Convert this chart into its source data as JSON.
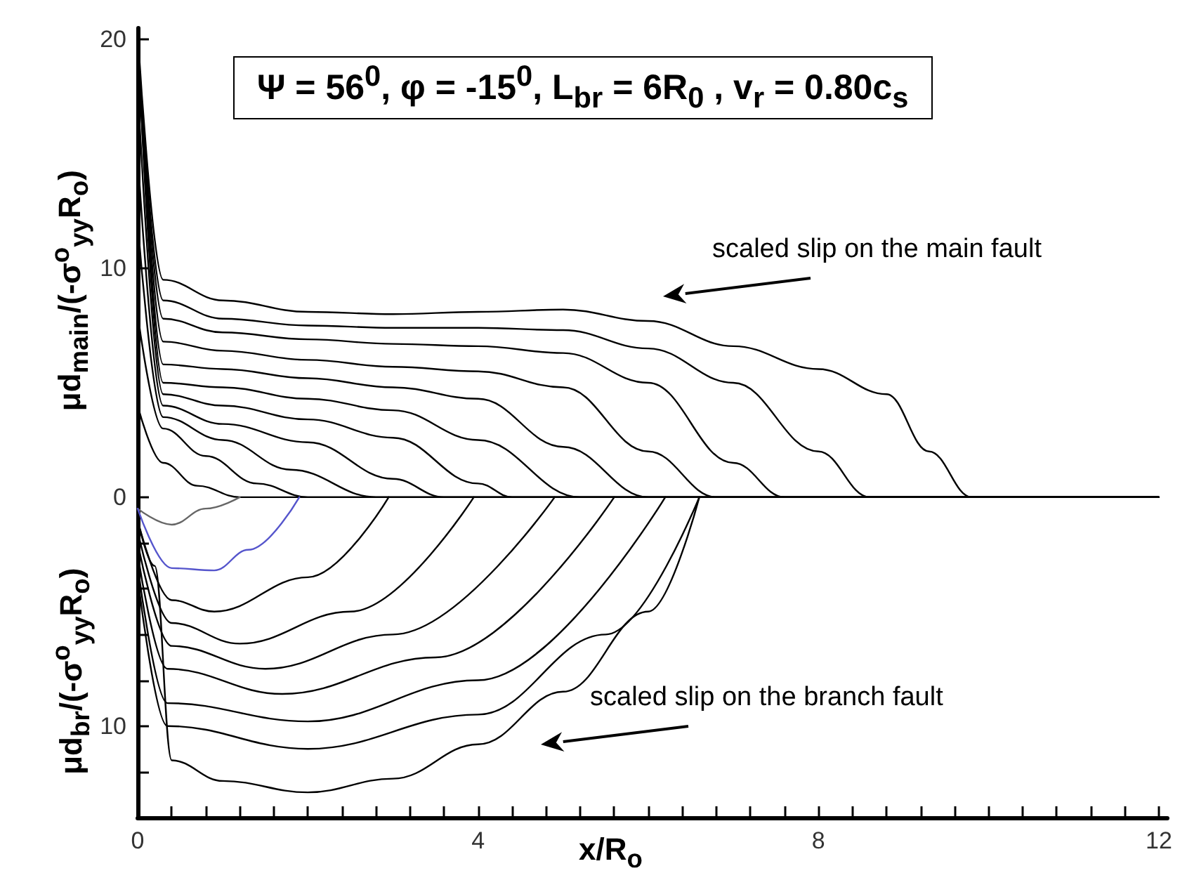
{
  "chart_data": {
    "type": "line",
    "title": "Ψ = 56$^{0}$, φ = -15$^{0}$, L$_{br}$ = 6R$_{0}$ , v$_{r}$ = 0.80c$_{s}$",
    "xlabel": "x/R$_{o}$",
    "ylabel": "μd$_{main}$/(-σ$^{o}$$_{yy}$R$_{o}$)",
    "annotations": [
      "μd$_{br}$/(-σ$^{o}$$_{yy}$R$_{o}$)",
      "scaled slip on the main fault",
      "scaled slip on the branch fault"
    ],
    "xlim": [
      0,
      12.1
    ],
    "ylim": [
      -14,
      20.5
    ],
    "xticks": [
      0,
      {
        "value": 0.4,
        "label": null
      },
      {
        "value": 0.8,
        "label": null
      },
      {
        "value": 1.2,
        "label": null
      },
      {
        "value": 1.6,
        "label": null
      },
      {
        "value": 2,
        "label": null
      },
      {
        "value": 2.4,
        "label": null
      },
      {
        "value": 2.8,
        "label": null
      },
      {
        "value": 3.2,
        "label": null
      },
      {
        "value": 3.6,
        "label": null
      },
      4,
      {
        "value": 4.4,
        "label": null
      },
      {
        "value": 4.8,
        "label": null
      },
      {
        "value": 5.2,
        "label": null
      },
      {
        "value": 5.6,
        "label": null
      },
      {
        "value": 6,
        "label": null
      },
      {
        "value": 6.4,
        "label": null
      },
      {
        "value": 6.8,
        "label": null
      },
      {
        "value": 7.2,
        "label": null
      },
      {
        "value": 7.6,
        "label": null
      },
      8,
      {
        "value": 8.4,
        "label": null
      },
      {
        "value": 8.8,
        "label": null
      },
      {
        "value": 9.2,
        "label": null
      },
      {
        "value": 9.6,
        "label": null
      },
      {
        "value": 10,
        "label": null
      },
      {
        "value": 10.4,
        "label": null
      },
      {
        "value": 10.8,
        "label": null
      },
      {
        "value": 11.2,
        "label": null
      },
      {
        "value": 11.6,
        "label": null
      },
      12
    ],
    "yticks": [
      {
        "value": -12,
        "label": null
      },
      {
        "value": -10,
        "label": "10"
      },
      {
        "value": -8,
        "label": null
      },
      {
        "value": -6,
        "label": null
      },
      {
        "value": -4,
        "label": null
      },
      {
        "value": -2,
        "label": null
      },
      0,
      10,
      20
    ],
    "grid": false,
    "marker": "none",
    "line_style": "solid",
    "series": [
      {
        "color": "#000000",
        "x": [
          0,
          0.3,
          0.7,
          1.2,
          12
        ],
        "values": [
          4,
          1.5,
          0.5,
          0,
          0
        ]
      },
      {
        "color": "#000000",
        "x": [
          0,
          0.3,
          0.8,
          1.4,
          2.0,
          12
        ],
        "values": [
          8,
          3,
          1.8,
          0.6,
          0,
          0
        ]
      },
      {
        "color": "#000000",
        "x": [
          0,
          0.3,
          1,
          1.8,
          2.8,
          12
        ],
        "values": [
          12,
          3.5,
          2.5,
          1.2,
          0,
          0
        ]
      },
      {
        "color": "#000000",
        "x": [
          0,
          0.3,
          1,
          2,
          3,
          3.6,
          12
        ],
        "values": [
          15,
          4,
          3.2,
          2.4,
          0.8,
          0,
          0
        ]
      },
      {
        "color": "#000000",
        "x": [
          0,
          0.3,
          1,
          2,
          3,
          4,
          4.4,
          12
        ],
        "values": [
          18,
          4.5,
          4,
          3.4,
          2.6,
          0.6,
          0,
          0
        ]
      },
      {
        "color": "#000000",
        "x": [
          0,
          0.3,
          1,
          2,
          3,
          4,
          5.2,
          12
        ],
        "values": [
          20,
          5,
          4.8,
          4.3,
          3.8,
          2.5,
          0,
          0
        ]
      },
      {
        "color": "#000000",
        "x": [
          0,
          0.3,
          1,
          2,
          3,
          4,
          5,
          6,
          12
        ],
        "values": [
          20,
          5.8,
          5.6,
          5.2,
          4.8,
          4.3,
          2.2,
          0,
          0
        ]
      },
      {
        "color": "#000000",
        "x": [
          0,
          0.3,
          1,
          2,
          3,
          4,
          5,
          6,
          6.8,
          12
        ],
        "values": [
          20,
          6.8,
          6.4,
          6,
          5.7,
          5.5,
          4.8,
          2,
          0,
          0
        ]
      },
      {
        "color": "#000000",
        "x": [
          0,
          0.3,
          1,
          2,
          3,
          4,
          5,
          6,
          7,
          7.6,
          12
        ],
        "values": [
          20,
          7.8,
          7.2,
          6.9,
          6.7,
          6.6,
          6.3,
          5,
          1.5,
          0,
          0
        ]
      },
      {
        "color": "#000000",
        "x": [
          0,
          0.3,
          1,
          2,
          3,
          4,
          5,
          6,
          7,
          8,
          8.6,
          12
        ],
        "values": [
          20,
          8.6,
          7.8,
          7.5,
          7.4,
          7.4,
          7.3,
          6.5,
          5,
          2,
          0,
          0
        ]
      },
      {
        "color": "#000000",
        "x": [
          0,
          0.3,
          1,
          2,
          3,
          4,
          5,
          6,
          7,
          8,
          8.8,
          9.3,
          9.8,
          12
        ],
        "values": [
          20.3,
          9.5,
          8.6,
          8.1,
          8,
          8.1,
          8.2,
          7.7,
          6.6,
          5.6,
          4.5,
          2,
          0,
          0
        ]
      },
      {
        "color": "#666666",
        "x": [
          0,
          0.4,
          0.8,
          1.2
        ],
        "values": [
          -0.5,
          -1.2,
          -0.5,
          0
        ]
      },
      {
        "color": "#5555cc",
        "x": [
          0,
          0.4,
          0.9,
          1.3,
          1.9
        ],
        "values": [
          -0.5,
          -3.1,
          -3.2,
          -2.3,
          0
        ]
      },
      {
        "color": "#000000",
        "x": [
          0,
          0.4,
          0.9,
          2,
          2.95
        ],
        "values": [
          -1,
          -4.5,
          -5,
          -3.5,
          0
        ]
      },
      {
        "color": "#000000",
        "x": [
          0,
          0.4,
          1.2,
          2.5,
          3.95
        ],
        "values": [
          -1.5,
          -5.5,
          -6.4,
          -5,
          0
        ]
      },
      {
        "color": "#000000",
        "x": [
          0,
          0.4,
          1.5,
          3,
          4.9
        ],
        "values": [
          -2,
          -6.5,
          -7.5,
          -6,
          0
        ]
      },
      {
        "color": "#000000",
        "x": [
          0,
          0.35,
          1.7,
          3.5,
          5.6
        ],
        "values": [
          -2.5,
          -7.5,
          -8.6,
          -7,
          0
        ]
      },
      {
        "color": "#000000",
        "x": [
          0,
          0.35,
          2,
          4,
          6.2
        ],
        "values": [
          -3,
          -9,
          -9.8,
          -8,
          0
        ]
      },
      {
        "color": "#000000",
        "x": [
          0,
          0.35,
          2,
          4,
          5.5,
          6.6
        ],
        "values": [
          -3.5,
          -10,
          -11,
          -9.5,
          -6,
          0
        ]
      },
      {
        "color": "#000000",
        "x": [
          0,
          0.2,
          0.4,
          1,
          2,
          3,
          4,
          5,
          6,
          6.6
        ],
        "values": [
          -1,
          -3,
          -11.5,
          -12.4,
          -12.9,
          -12.3,
          -10.8,
          -8.5,
          -5,
          0
        ]
      }
    ]
  }
}
